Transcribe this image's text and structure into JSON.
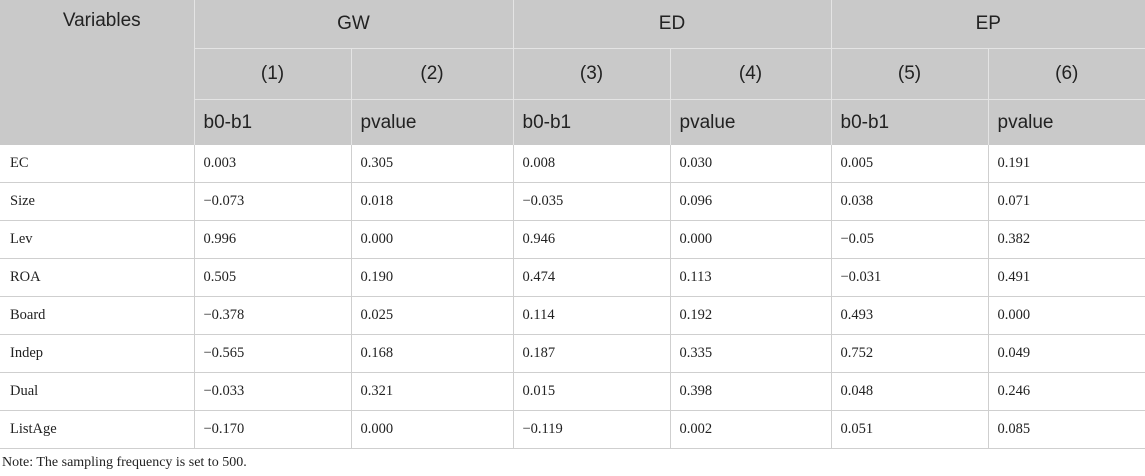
{
  "header": {
    "variables_label": "Variables",
    "groups": [
      "GW",
      "ED",
      "EP"
    ],
    "model_numbers": [
      "(1)",
      "(2)",
      "(3)",
      "(4)",
      "(5)",
      "(6)"
    ],
    "stat_labels": [
      "b0-b1",
      "pvalue",
      "b0-b1",
      "pvalue",
      "b0-b1",
      "pvalue"
    ]
  },
  "rows": [
    {
      "label": "EC",
      "values": [
        "0.003",
        "0.305",
        "0.008",
        "0.030",
        "0.005",
        "0.191"
      ]
    },
    {
      "label": "Size",
      "values": [
        "−0.073",
        "0.018",
        "−0.035",
        "0.096",
        "0.038",
        "0.071"
      ]
    },
    {
      "label": "Lev",
      "values": [
        "0.996",
        "0.000",
        "0.946",
        "0.000",
        "−0.05",
        "0.382"
      ]
    },
    {
      "label": "ROA",
      "values": [
        "0.505",
        "0.190",
        "0.474",
        "0.113",
        "−0.031",
        "0.491"
      ]
    },
    {
      "label": "Board",
      "values": [
        "−0.378",
        "0.025",
        "0.114",
        "0.192",
        "0.493",
        "0.000"
      ]
    },
    {
      "label": "Indep",
      "values": [
        "−0.565",
        "0.168",
        "0.187",
        "0.335",
        "0.752",
        "0.049"
      ]
    },
    {
      "label": "Dual",
      "values": [
        "−0.033",
        "0.321",
        "0.015",
        "0.398",
        "0.048",
        "0.246"
      ]
    },
    {
      "label": "ListAge",
      "values": [
        "−0.170",
        "0.000",
        "−0.119",
        "0.002",
        "0.051",
        "0.085"
      ]
    }
  ],
  "note": "Note: The sampling frequency is set to 500."
}
